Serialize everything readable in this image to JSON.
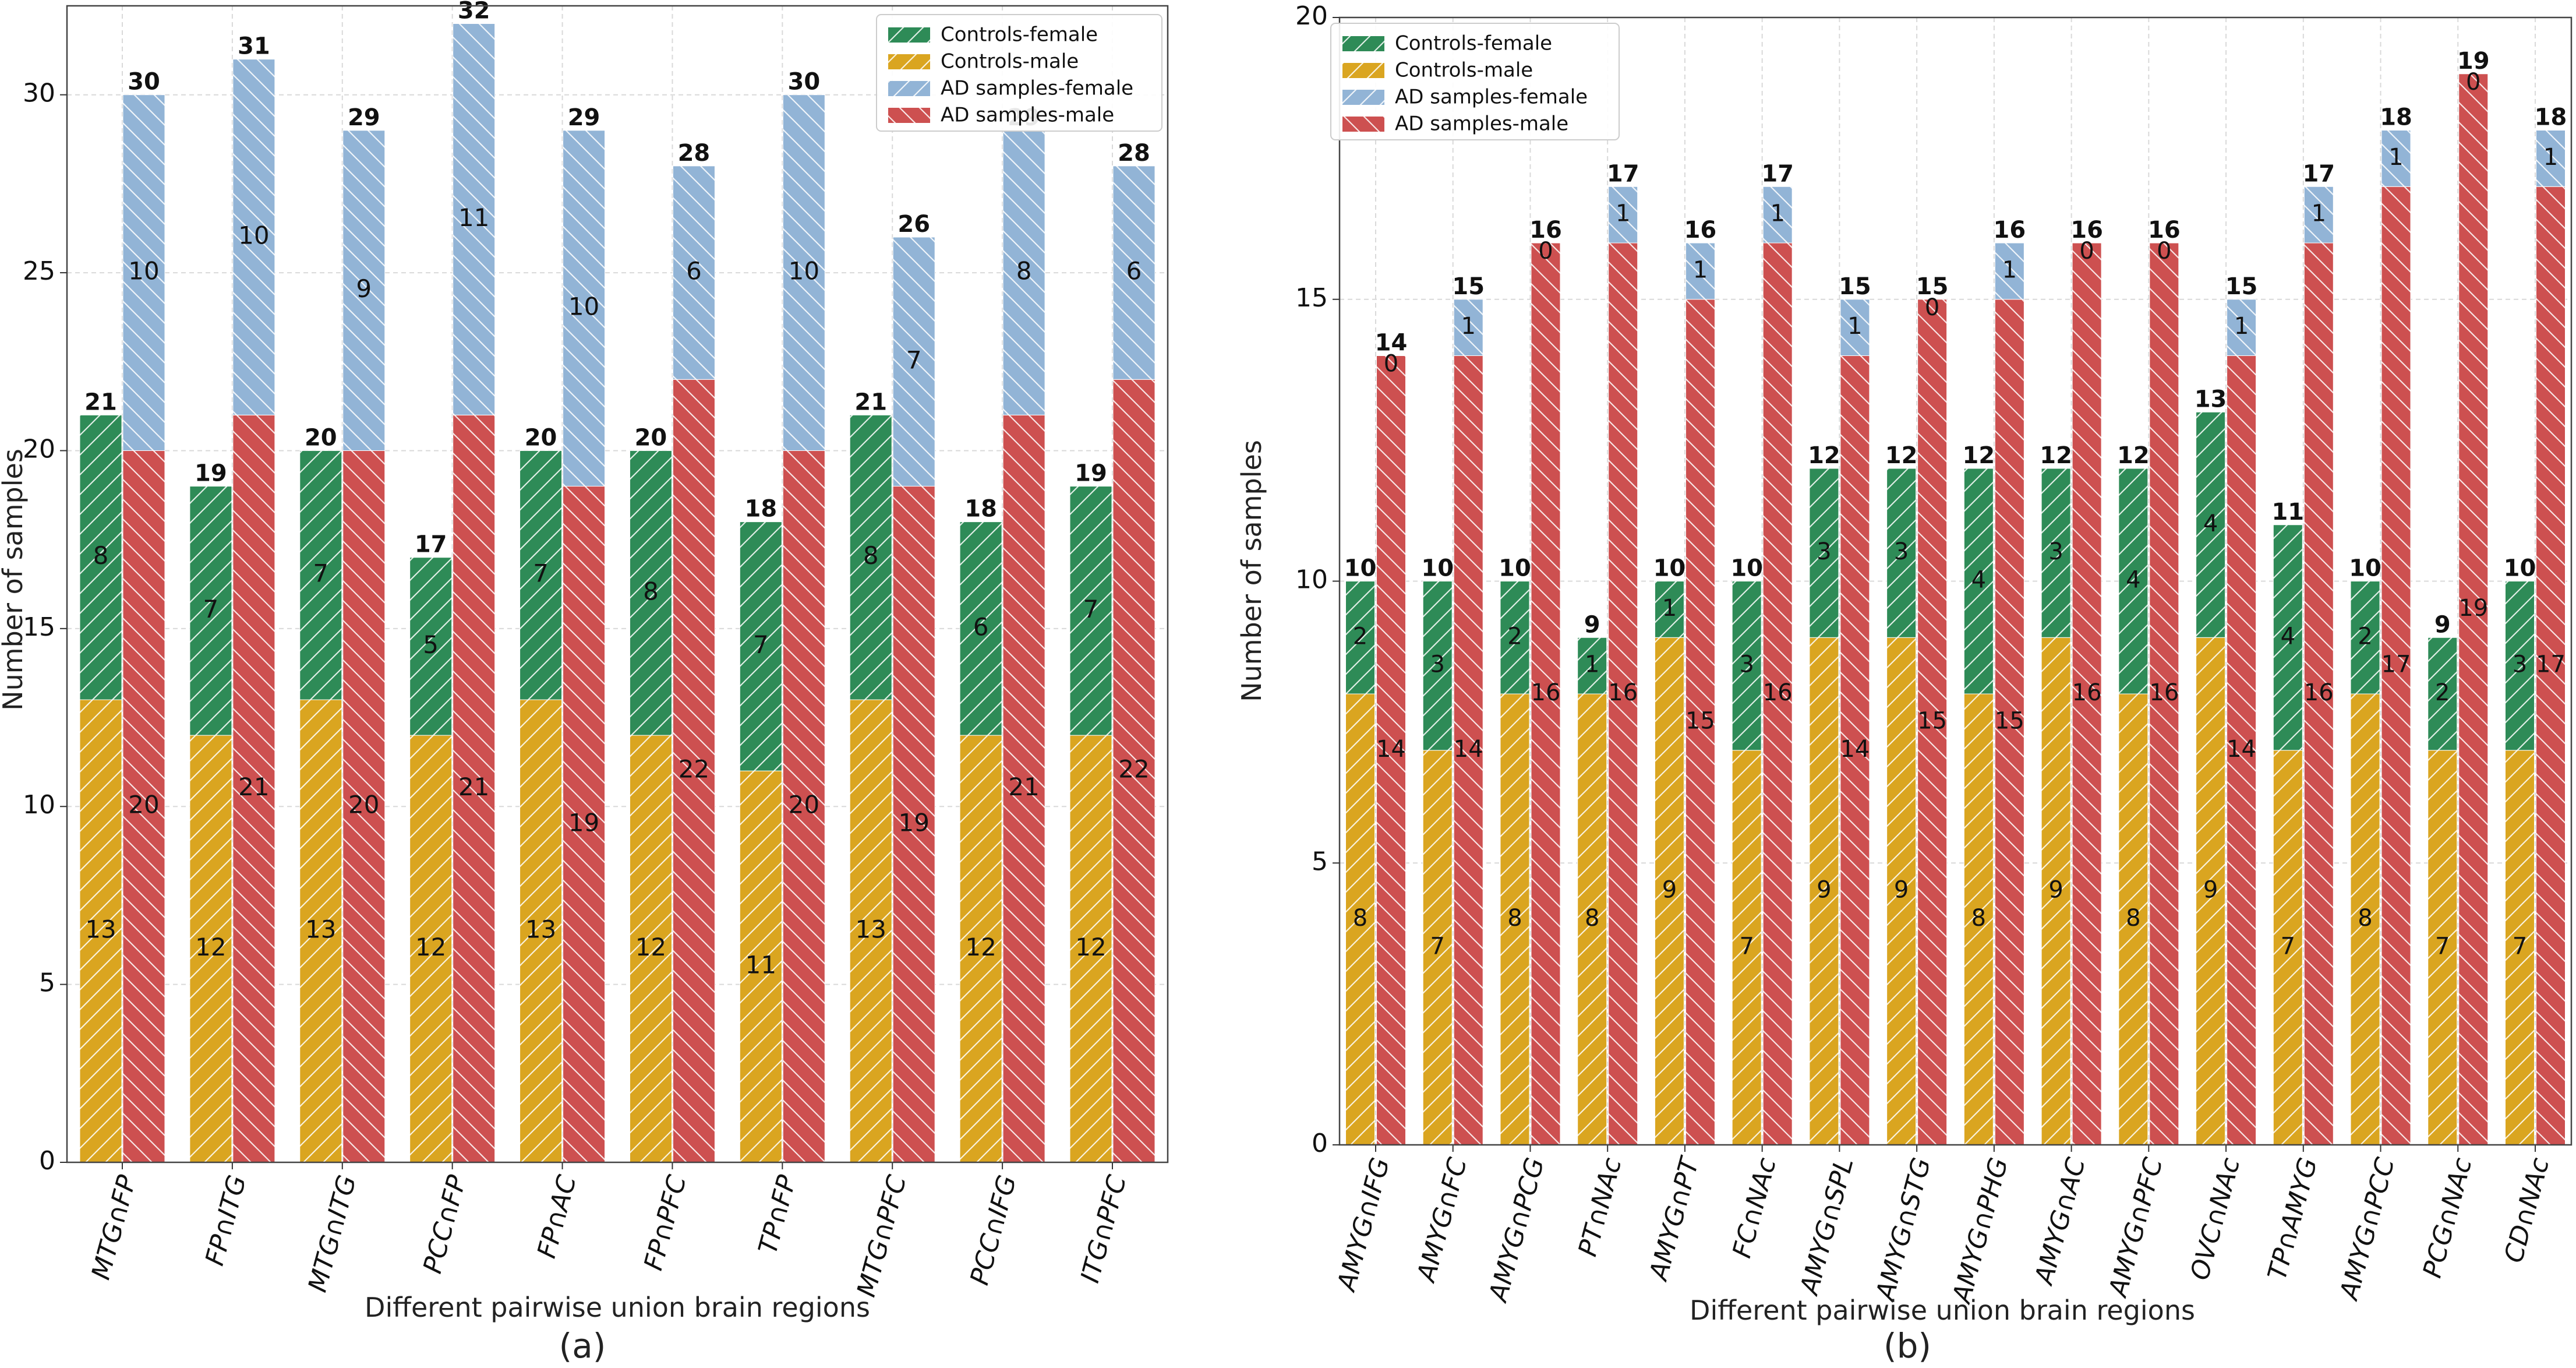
{
  "chart_data": [
    {
      "type": "bar",
      "panel_caption": "(a)",
      "xlabel": "Different pairwise union brain regions",
      "ylabel": "Number of samples",
      "ylim": [
        0,
        32.5
      ],
      "yticks": [
        0,
        5,
        10,
        15,
        20,
        25,
        30
      ],
      "grid": true,
      "legend_position": "top-right",
      "categories": [
        "MTG∩FP",
        "FP∩ITG",
        "MTG∩ITG",
        "PCC∩FP",
        "FP∩AC",
        "FP∩PFC",
        "TP∩FP",
        "MTG∩PFC",
        "PCC∩IFG",
        "ITG∩PFC"
      ],
      "series": [
        {
          "name": "Controls-female",
          "stack": "Controls",
          "values": [
            8,
            7,
            7,
            5,
            7,
            8,
            7,
            8,
            6,
            7
          ]
        },
        {
          "name": "Controls-male",
          "stack": "Controls",
          "values": [
            13,
            12,
            13,
            12,
            13,
            12,
            11,
            13,
            12,
            12
          ]
        },
        {
          "name": "AD samples-female",
          "stack": "AD",
          "values": [
            10,
            10,
            9,
            11,
            10,
            6,
            10,
            7,
            8,
            6
          ]
        },
        {
          "name": "AD samples-male",
          "stack": "AD",
          "values": [
            20,
            21,
            20,
            21,
            19,
            22,
            20,
            19,
            21,
            22
          ]
        }
      ],
      "totals": {
        "Controls": [
          21,
          19,
          20,
          17,
          20,
          20,
          18,
          21,
          18,
          19
        ],
        "AD": [
          30,
          31,
          29,
          32,
          29,
          28,
          30,
          26,
          29,
          28
        ]
      }
    },
    {
      "type": "bar",
      "panel_caption": "(b)",
      "xlabel": "Different pairwise union brain regions",
      "ylabel": "Number of samples",
      "ylim": [
        0,
        20
      ],
      "yticks": [
        0,
        5,
        10,
        15,
        20
      ],
      "grid": true,
      "legend_position": "top-left",
      "categories": [
        "AMYG∩IFG",
        "AMYG∩FC",
        "AMYG∩PCG",
        "PT∩NAc",
        "AMYG∩PT",
        "FC∩NAc",
        "AMYG∩SPL",
        "AMYG∩STG",
        "AMYG∩PHG",
        "AMYG∩AC",
        "AMYG∩PFC",
        "OVC∩NAc",
        "TP∩AMYG",
        "AMYG∩PCC",
        "PCG∩NAc",
        "CD∩NAc"
      ],
      "series": [
        {
          "name": "Controls-female",
          "stack": "Controls",
          "values": [
            2,
            3,
            2,
            1,
            1,
            3,
            3,
            3,
            4,
            3,
            4,
            4,
            4,
            2,
            2,
            3
          ]
        },
        {
          "name": "Controls-male",
          "stack": "Controls",
          "values": [
            8,
            7,
            8,
            8,
            9,
            7,
            9,
            9,
            8,
            9,
            8,
            9,
            7,
            8,
            7,
            7
          ]
        },
        {
          "name": "AD samples-female",
          "stack": "AD",
          "values": [
            0,
            1,
            0,
            1,
            1,
            1,
            1,
            0,
            1,
            0,
            0,
            1,
            1,
            1,
            0,
            1
          ]
        },
        {
          "name": "AD samples-male",
          "stack": "AD",
          "values": [
            14,
            14,
            16,
            16,
            15,
            16,
            14,
            15,
            15,
            16,
            16,
            14,
            16,
            17,
            19,
            17
          ]
        }
      ],
      "totals": {
        "Controls": [
          10,
          10,
          10,
          9,
          10,
          10,
          12,
          12,
          12,
          12,
          12,
          13,
          11,
          10,
          9,
          10
        ],
        "AD": [
          14,
          15,
          16,
          17,
          16,
          17,
          15,
          15,
          16,
          16,
          16,
          15,
          17,
          18,
          19,
          18
        ]
      }
    }
  ],
  "colors": {
    "controls_female": "#2e8b57",
    "controls_male": "#daa520",
    "ad_female": "#92b4d6",
    "ad_male": "#cd5050",
    "grid": "#d9d9d9",
    "axis": "#444444"
  }
}
